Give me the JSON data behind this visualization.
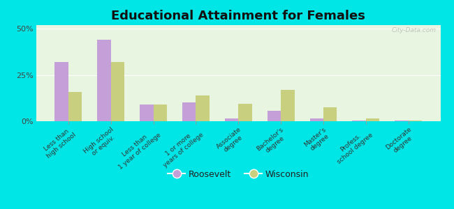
{
  "title": "Educational Attainment for Females",
  "categories": [
    "Less than\nhigh school",
    "High school\nor equiv.",
    "Less than\n1 year of college",
    "1 or more\nyears of college",
    "Associate\ndegree",
    "Bachelor's\ndegree",
    "Master's\ndegree",
    "Profess.\nschool degree",
    "Doctorate\ndegree"
  ],
  "roosevelt": [
    32.0,
    44.0,
    9.0,
    10.0,
    1.5,
    5.5,
    1.5,
    0.3,
    0.3
  ],
  "wisconsin": [
    16.0,
    32.0,
    9.0,
    14.0,
    9.5,
    17.0,
    7.5,
    1.5,
    0.5
  ],
  "roosevelt_color": "#c49fd8",
  "wisconsin_color": "#c8d080",
  "background_color": "#00e5e5",
  "plot_bg": "#e8f5e0",
  "title_fontsize": 13,
  "tick_fontsize": 6.5,
  "legend_fontsize": 9,
  "ylim": [
    0,
    52
  ],
  "yticks": [
    0,
    25,
    50
  ],
  "ytick_labels": [
    "0%",
    "25%",
    "50%"
  ],
  "watermark": "City-Data.com"
}
